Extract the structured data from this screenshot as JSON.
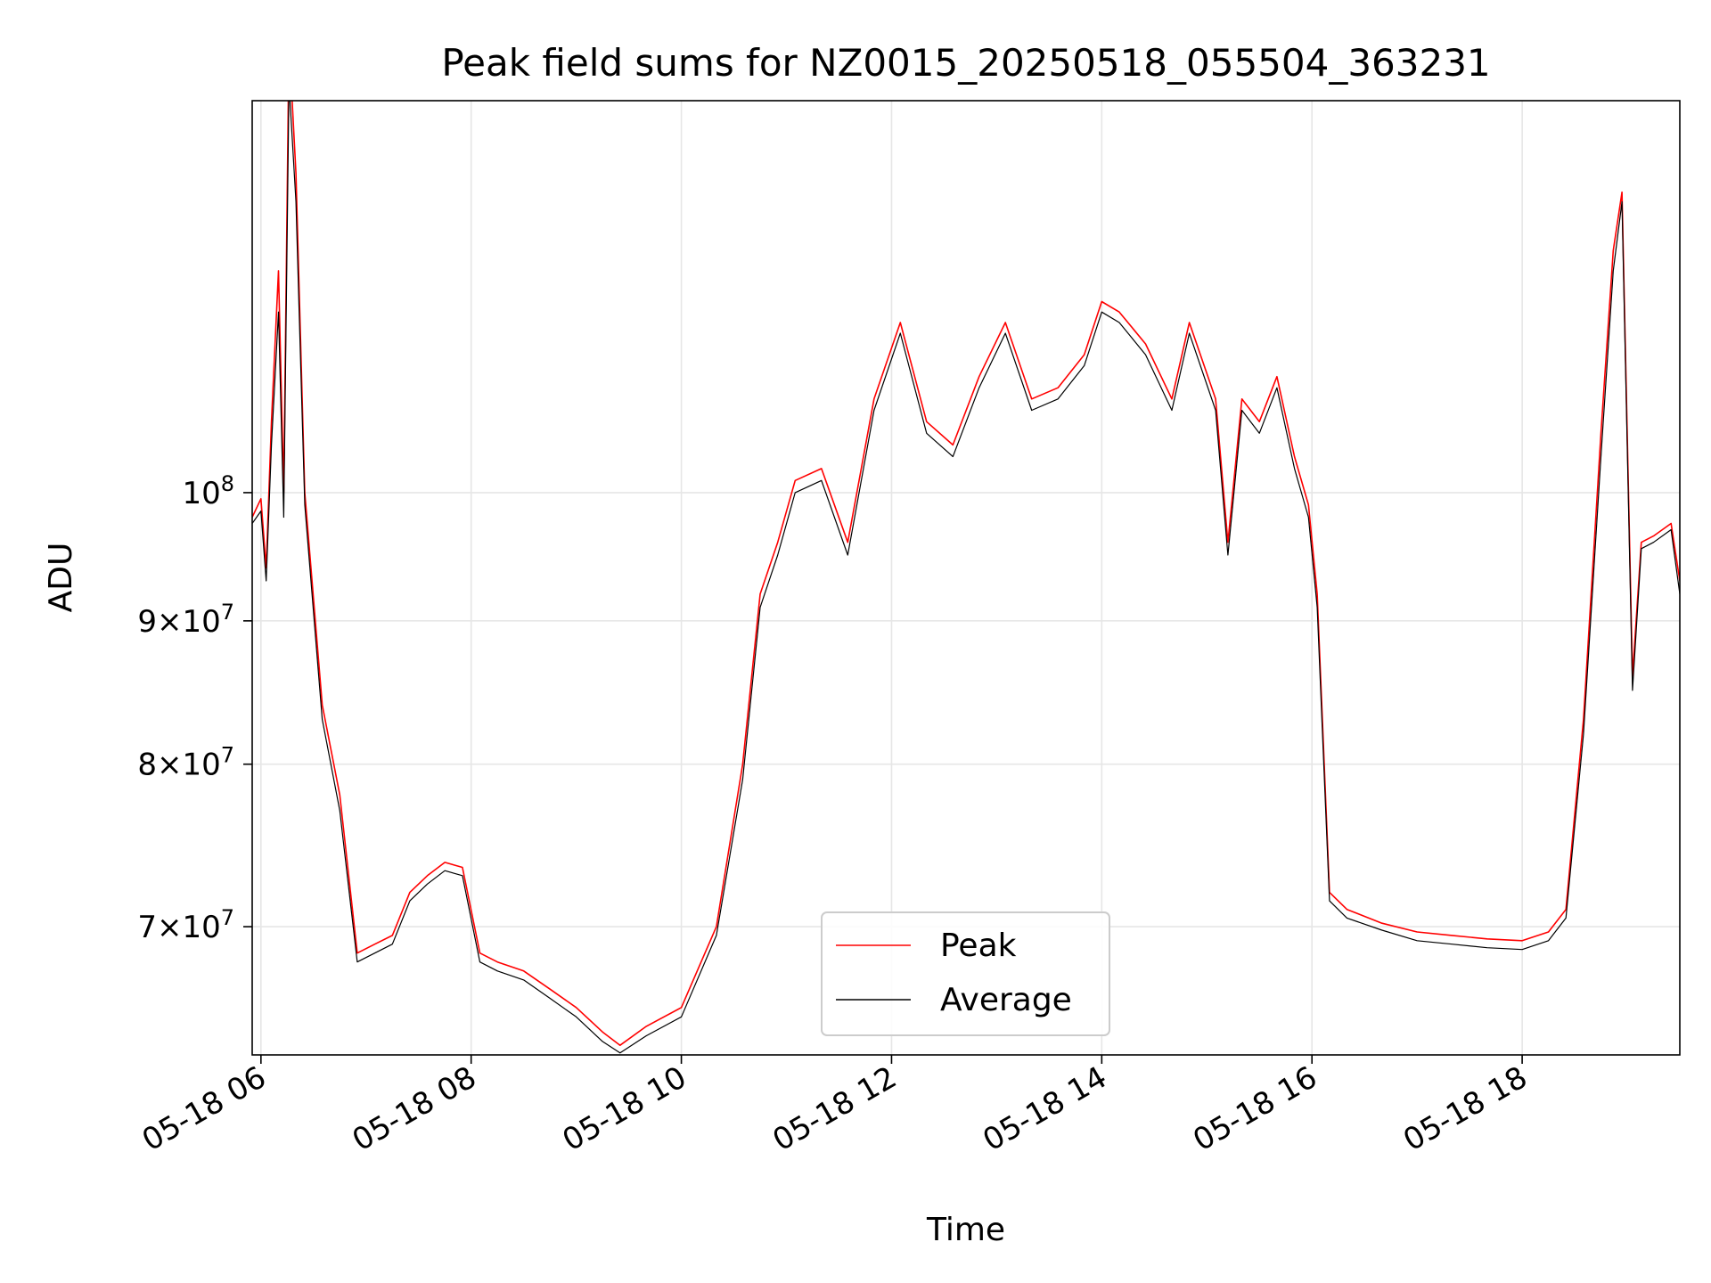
{
  "chart_data": {
    "type": "line",
    "title": "Peak field sums for NZ0015_20250518_055504_363231",
    "xlabel": "Time",
    "ylabel": "ADU",
    "x_scale": "time",
    "y_scale": "log",
    "xlim": [
      "05-18 05:55",
      "05-18 19:30"
    ],
    "ylim": [
      63000000,
      138000000
    ],
    "grid": true,
    "legend_position": "bottom-center",
    "x_ticks": [
      "05-18 06",
      "05-18 08",
      "05-18 10",
      "05-18 12",
      "05-18 14",
      "05-18 16",
      "05-18 18"
    ],
    "y_ticks": [
      {
        "value": 70000000,
        "mantissa": "7",
        "exponent": "7"
      },
      {
        "value": 80000000,
        "mantissa": "8",
        "exponent": "7"
      },
      {
        "value": 90000000,
        "mantissa": "9",
        "exponent": "7"
      },
      {
        "value": 100000000,
        "mantissa": "",
        "exponent": "8"
      }
    ],
    "x": [
      "05-18 05:55",
      "05-18 06:00",
      "05-18 06:03",
      "05-18 06:06",
      "05-18 06:10",
      "05-18 06:13",
      "05-18 06:16",
      "05-18 06:20",
      "05-18 06:25",
      "05-18 06:35",
      "05-18 06:45",
      "05-18 06:55",
      "05-18 07:05",
      "05-18 07:15",
      "05-18 07:25",
      "05-18 07:35",
      "05-18 07:45",
      "05-18 07:55",
      "05-18 08:05",
      "05-18 08:15",
      "05-18 08:30",
      "05-18 08:45",
      "05-18 09:00",
      "05-18 09:15",
      "05-18 09:25",
      "05-18 09:40",
      "05-18 10:00",
      "05-18 10:20",
      "05-18 10:35",
      "05-18 10:45",
      "05-18 10:55",
      "05-18 11:05",
      "05-18 11:20",
      "05-18 11:35",
      "05-18 11:50",
      "05-18 12:05",
      "05-18 12:20",
      "05-18 12:35",
      "05-18 12:50",
      "05-18 13:05",
      "05-18 13:20",
      "05-18 13:35",
      "05-18 13:50",
      "05-18 14:00",
      "05-18 14:10",
      "05-18 14:25",
      "05-18 14:40",
      "05-18 14:50",
      "05-18 15:05",
      "05-18 15:12",
      "05-18 15:20",
      "05-18 15:30",
      "05-18 15:40",
      "05-18 15:50",
      "05-18 15:58",
      "05-18 16:03",
      "05-18 16:10",
      "05-18 16:20",
      "05-18 16:40",
      "05-18 17:00",
      "05-18 17:20",
      "05-18 17:40",
      "05-18 18:00",
      "05-18 18:15",
      "05-18 18:25",
      "05-18 18:35",
      "05-18 18:45",
      "05-18 18:52",
      "05-18 18:57",
      "05-18 19:03",
      "05-18 19:08",
      "05-18 19:15",
      "05-18 19:25",
      "05-18 19:30"
    ],
    "series": [
      {
        "name": "Peak",
        "color": "#ff0000",
        "values": [
          98000000,
          99500000,
          94000000,
          106000000,
          120000000,
          100000000,
          145000000,
          130000000,
          100000000,
          84000000,
          78000000,
          68500000,
          69000000,
          69500000,
          72000000,
          73000000,
          73800000,
          73500000,
          68500000,
          68000000,
          67500000,
          66500000,
          65500000,
          64200000,
          63500000,
          64500000,
          65500000,
          70000000,
          80000000,
          92000000,
          96000000,
          101000000,
          102000000,
          96000000,
          108000000,
          115000000,
          106000000,
          104000000,
          110000000,
          115000000,
          108000000,
          109000000,
          112000000,
          117000000,
          116000000,
          113000000,
          108000000,
          115000000,
          108000000,
          96000000,
          108000000,
          106000000,
          110000000,
          103000000,
          99000000,
          92000000,
          72000000,
          71000000,
          70200000,
          69700000,
          69500000,
          69300000,
          69200000,
          69700000,
          71000000,
          83000000,
          105000000,
          122000000,
          128000000,
          86000000,
          96000000,
          96500000,
          97500000,
          93000000
        ]
      },
      {
        "name": "Average",
        "color": "#000000",
        "values": [
          97500000,
          98500000,
          93000000,
          104000000,
          116000000,
          98000000,
          140000000,
          127000000,
          99000000,
          83000000,
          77000000,
          68000000,
          68500000,
          69000000,
          71500000,
          72500000,
          73300000,
          73000000,
          68000000,
          67500000,
          67000000,
          66000000,
          65000000,
          63700000,
          63100000,
          64000000,
          65000000,
          69500000,
          79000000,
          91000000,
          95000000,
          100000000,
          101000000,
          95000000,
          107000000,
          114000000,
          105000000,
          103000000,
          109000000,
          114000000,
          107000000,
          108000000,
          111000000,
          116000000,
          115000000,
          112000000,
          107000000,
          114000000,
          107000000,
          95000000,
          107000000,
          105000000,
          109000000,
          102000000,
          98000000,
          91000000,
          71500000,
          70500000,
          69800000,
          69200000,
          69000000,
          68800000,
          68700000,
          69200000,
          70500000,
          82000000,
          103000000,
          120000000,
          127000000,
          85000000,
          95500000,
          96000000,
          97000000,
          92000000
        ]
      }
    ]
  }
}
